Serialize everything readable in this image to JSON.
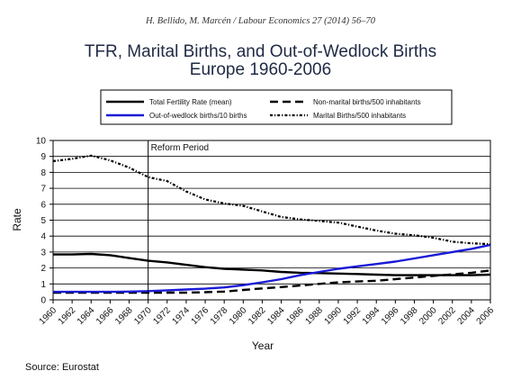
{
  "header": "H. Bellido, M. Marcén / Labour Economics 27 (2014) 56–70",
  "source": "Source: Eurostat",
  "chart_data": {
    "type": "line",
    "title": [
      "TFR, Marital Births, and Out-of-Wedlock Births",
      "Europe 1960-2006"
    ],
    "xlabel": "Year",
    "ylabel": "Rate",
    "xlim": [
      1960,
      2006
    ],
    "ylim": [
      0,
      10
    ],
    "yticks": [
      0,
      1,
      2,
      3,
      4,
      5,
      6,
      7,
      8,
      9,
      10
    ],
    "xticks": [
      "1960",
      "1962",
      "1964",
      "1966",
      "1968",
      "1970",
      "1972",
      "1974",
      "1976",
      "1978",
      "1980",
      "1982",
      "1984",
      "1986",
      "1988",
      "1990",
      "1992",
      "1994",
      "1996",
      "1998",
      "2000",
      "2002",
      "2004",
      "2006"
    ],
    "grid": "horizontal",
    "annotation": {
      "x": 1970,
      "label": "Reform Period"
    },
    "legend_position": "top",
    "colors": {
      "tfr": "#000000",
      "out_of_wedlock": "#1a1ad6",
      "non_marital": "#000000",
      "marital": "#000000"
    },
    "x": [
      1960,
      1962,
      1964,
      1966,
      1968,
      1970,
      1972,
      1974,
      1976,
      1978,
      1980,
      1982,
      1984,
      1986,
      1988,
      1990,
      1992,
      1994,
      1996,
      1998,
      2000,
      2002,
      2004,
      2006
    ],
    "series": [
      {
        "name": "Total Fertility Rate (mean)",
        "style": "solid",
        "key": "tfr",
        "values": [
          2.85,
          2.85,
          2.88,
          2.8,
          2.62,
          2.45,
          2.35,
          2.2,
          2.05,
          1.95,
          1.9,
          1.85,
          1.75,
          1.7,
          1.68,
          1.65,
          1.62,
          1.58,
          1.55,
          1.55,
          1.55,
          1.55,
          1.55,
          1.58
        ]
      },
      {
        "name": "Non-marital births/500 inhabitants",
        "style": "dashed",
        "key": "non_marital",
        "values": [
          0.45,
          0.45,
          0.45,
          0.45,
          0.45,
          0.45,
          0.45,
          0.45,
          0.48,
          0.52,
          0.62,
          0.72,
          0.8,
          0.9,
          1.0,
          1.1,
          1.15,
          1.2,
          1.3,
          1.4,
          1.5,
          1.6,
          1.7,
          1.85
        ]
      },
      {
        "name": "Out-of-wedlock births/10 births",
        "style": "solid",
        "key": "out_of_wedlock",
        "values": [
          0.5,
          0.5,
          0.5,
          0.5,
          0.52,
          0.55,
          0.6,
          0.65,
          0.7,
          0.78,
          0.92,
          1.1,
          1.3,
          1.55,
          1.75,
          1.95,
          2.1,
          2.25,
          2.4,
          2.6,
          2.8,
          3.0,
          3.2,
          3.45
        ]
      },
      {
        "name": "Marital Births/500 inhabitants",
        "style": "dash-dot",
        "key": "marital",
        "values": [
          8.7,
          8.85,
          9.05,
          8.75,
          8.3,
          7.7,
          7.45,
          6.8,
          6.3,
          6.05,
          5.9,
          5.55,
          5.2,
          5.05,
          4.95,
          4.85,
          4.6,
          4.35,
          4.15,
          4.05,
          3.9,
          3.65,
          3.55,
          3.5
        ]
      }
    ]
  }
}
